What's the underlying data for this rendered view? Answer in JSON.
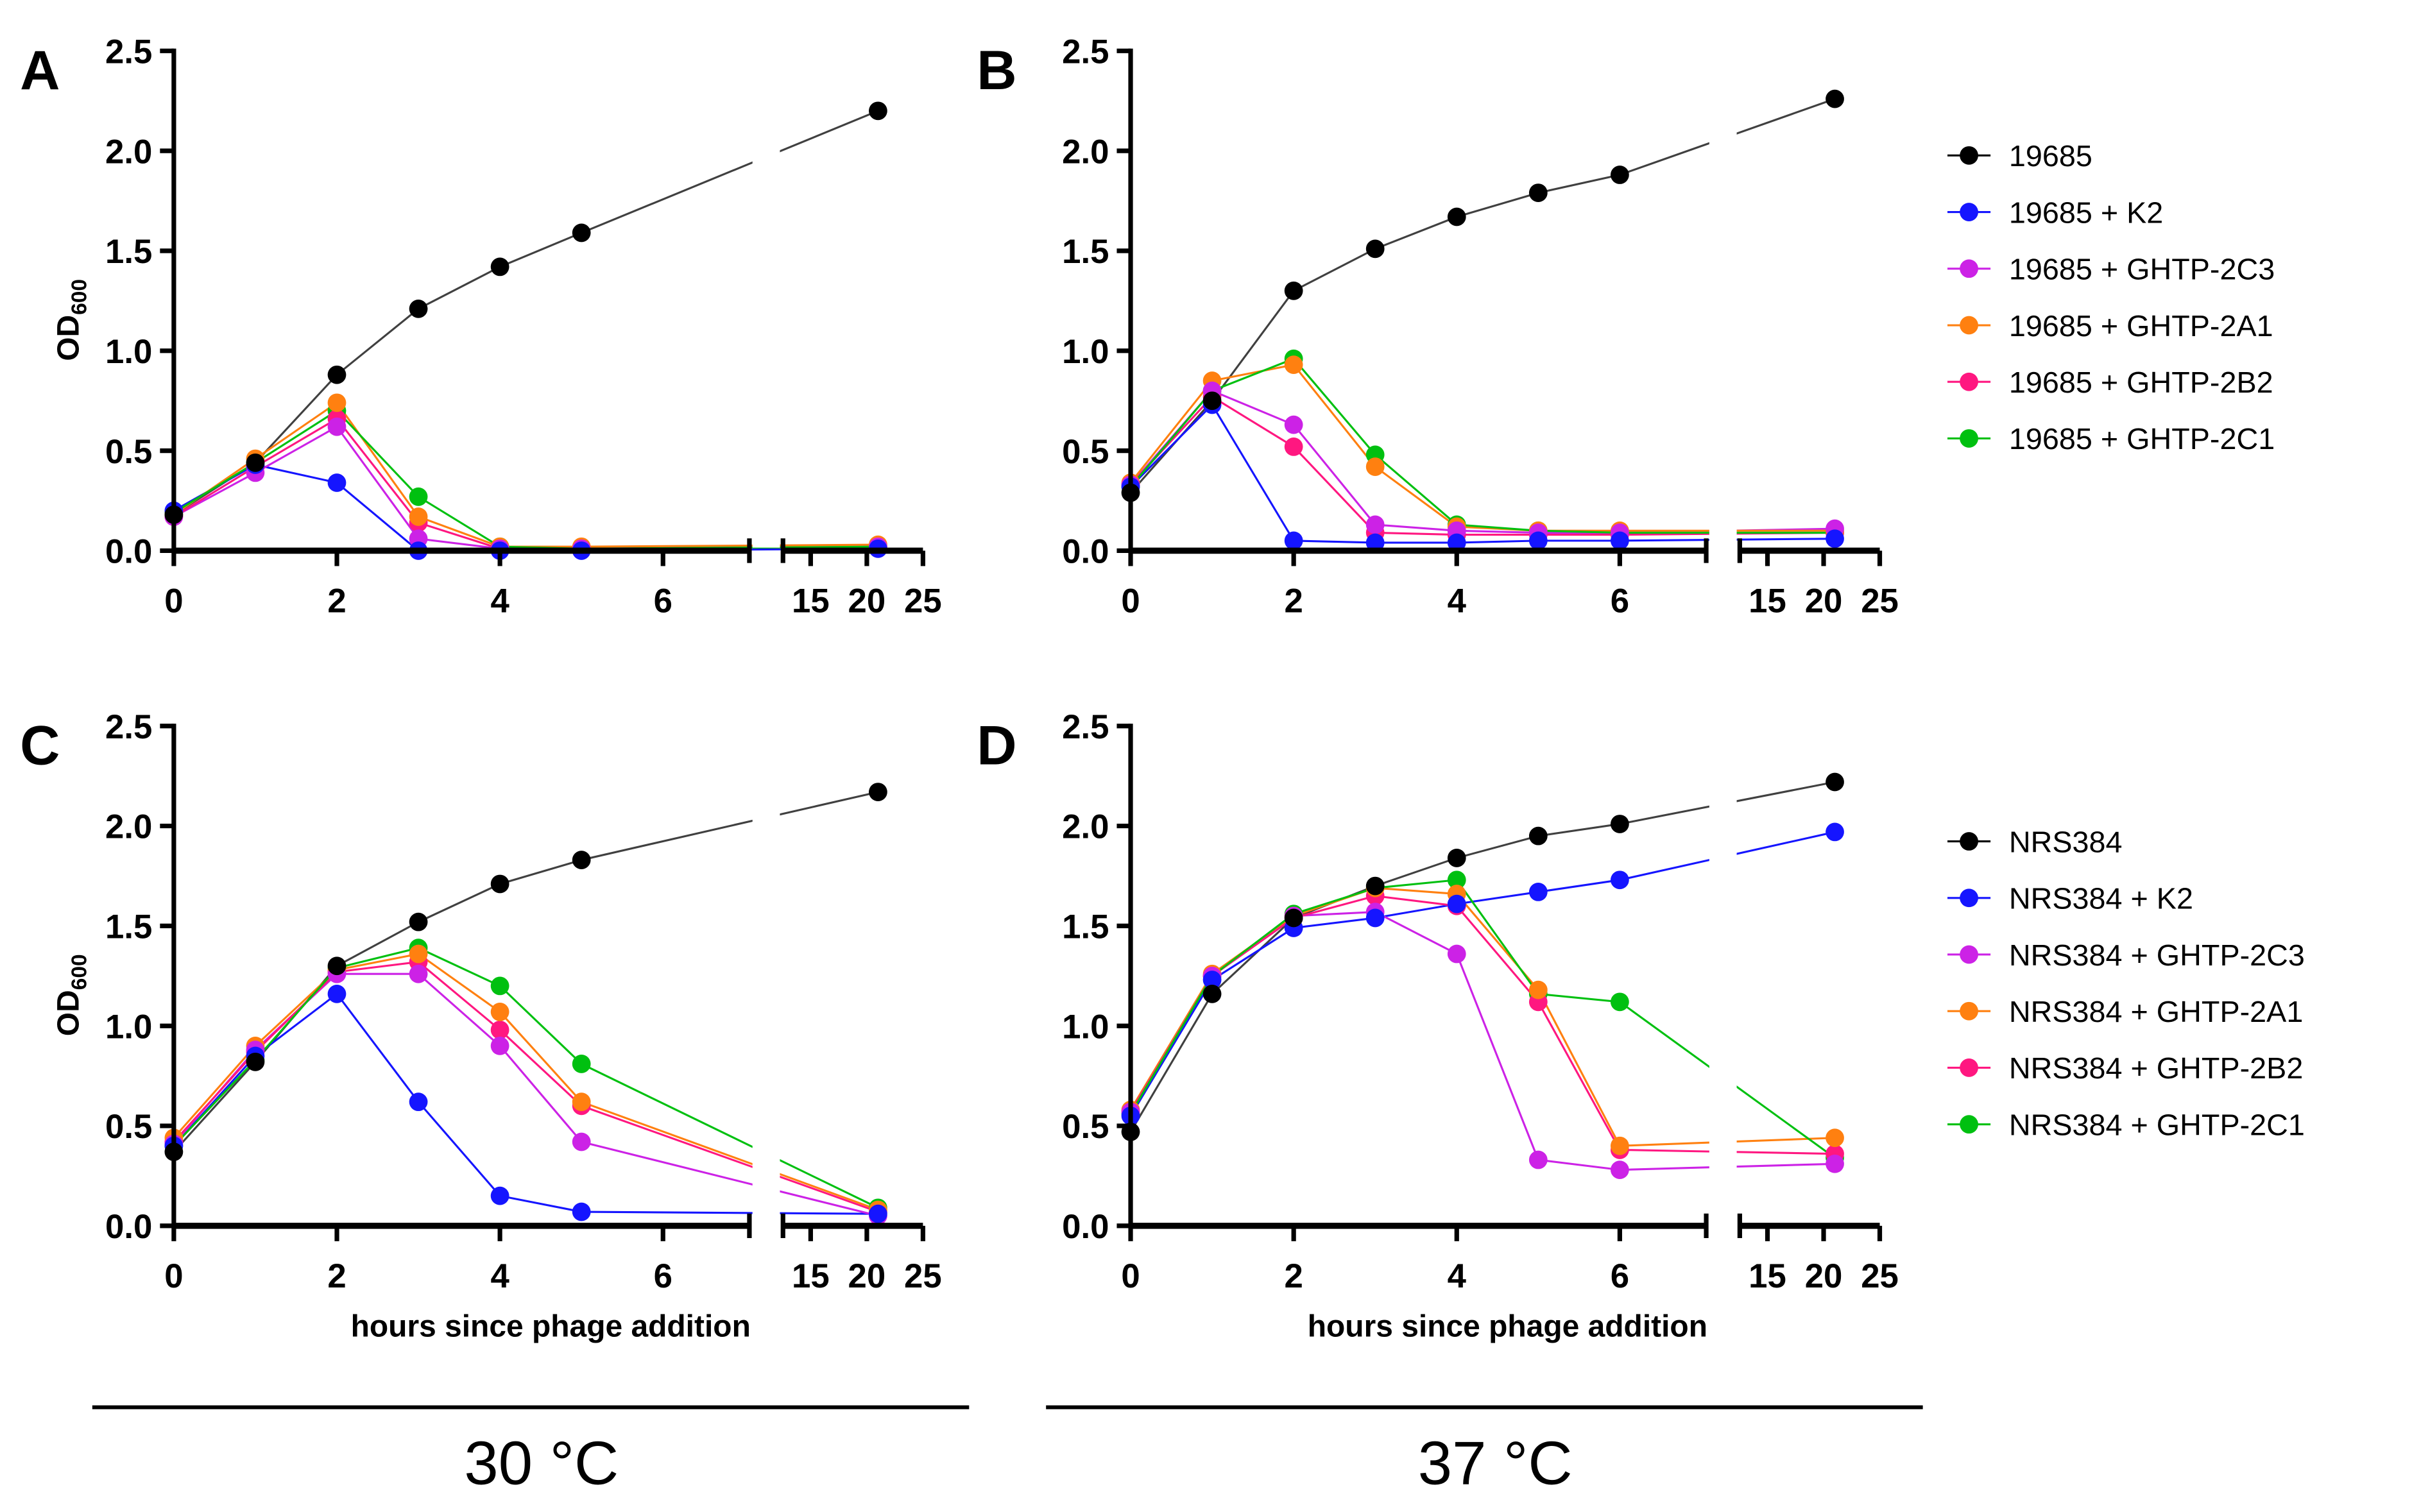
{
  "chart_data": [
    {
      "type": "line",
      "panel": "A",
      "ylabel": "OD",
      "ylabel_sub": "600",
      "xlabel": "",
      "ylim": [
        0,
        2.5
      ],
      "yticks": [
        "0.0",
        "0.5",
        "1.0",
        "1.5",
        "2.0",
        "2.5"
      ],
      "xticks_left": [
        "0",
        "2",
        "4",
        "6"
      ],
      "xticks_right": [
        "15",
        "20",
        "25"
      ],
      "x": [
        0,
        1,
        2,
        3,
        4,
        5,
        21
      ],
      "series": [
        {
          "name": "19685",
          "color": "#000000",
          "values": [
            0.18,
            0.44,
            0.88,
            1.21,
            1.42,
            1.59,
            2.2
          ]
        },
        {
          "name": "19685 + K2",
          "color": "#1515ff",
          "values": [
            0.2,
            0.43,
            0.34,
            0.0,
            0.0,
            0.0,
            0.01
          ]
        },
        {
          "name": "19685 + GHTP-2C3",
          "color": "#cc22e6",
          "values": [
            0.17,
            0.39,
            0.62,
            0.06,
            0.01,
            0.01,
            0.02
          ]
        },
        {
          "name": "19685 + GHTP-2A1",
          "color": "#ff8010",
          "values": [
            0.18,
            0.46,
            0.74,
            0.17,
            0.02,
            0.02,
            0.03
          ]
        },
        {
          "name": "19685 + GHTP-2B2",
          "color": "#ff1780",
          "values": [
            0.17,
            0.42,
            0.66,
            0.14,
            0.01,
            0.01,
            0.02
          ]
        },
        {
          "name": "19685 + GHTP-2C1",
          "color": "#00c010",
          "values": [
            0.19,
            0.44,
            0.7,
            0.27,
            0.02,
            0.01,
            0.02
          ]
        }
      ]
    },
    {
      "type": "line",
      "panel": "B",
      "ylabel": "",
      "ylabel_sub": "",
      "xlabel": "",
      "ylim": [
        0,
        2.5
      ],
      "yticks": [
        "0.0",
        "0.5",
        "1.0",
        "1.5",
        "2.0",
        "2.5"
      ],
      "xticks_left": [
        "0",
        "2",
        "4",
        "6"
      ],
      "xticks_right": [
        "15",
        "20",
        "25"
      ],
      "x": [
        0,
        1,
        2,
        3,
        4,
        5,
        6,
        21
      ],
      "series": [
        {
          "name": "19685",
          "color": "#000000",
          "values": [
            0.29,
            0.75,
            1.3,
            1.51,
            1.67,
            1.79,
            1.88,
            2.26
          ]
        },
        {
          "name": "19685 + K2",
          "color": "#1515ff",
          "values": [
            0.32,
            0.73,
            0.05,
            0.04,
            0.04,
            0.05,
            0.05,
            0.06
          ]
        },
        {
          "name": "19685 + GHTP-2C3",
          "color": "#cc22e6",
          "values": [
            0.33,
            0.8,
            0.63,
            0.13,
            0.1,
            0.09,
            0.09,
            0.11
          ]
        },
        {
          "name": "19685 + GHTP-2A1",
          "color": "#ff8010",
          "values": [
            0.34,
            0.85,
            0.93,
            0.42,
            0.12,
            0.1,
            0.1,
            0.1
          ]
        },
        {
          "name": "19685 + GHTP-2B2",
          "color": "#ff1780",
          "values": [
            0.33,
            0.77,
            0.52,
            0.09,
            0.08,
            0.08,
            0.08,
            0.09
          ]
        },
        {
          "name": "19685 + GHTP-2C1",
          "color": "#00c010",
          "values": [
            0.32,
            0.8,
            0.96,
            0.48,
            0.13,
            0.1,
            0.09,
            0.09
          ]
        }
      ],
      "legend": "right"
    },
    {
      "type": "line",
      "panel": "C",
      "ylabel": "OD",
      "ylabel_sub": "600",
      "xlabel": "hours since phage addition",
      "ylim": [
        0,
        2.5
      ],
      "yticks": [
        "0.0",
        "0.5",
        "1.0",
        "1.5",
        "2.0",
        "2.5"
      ],
      "xticks_left": [
        "0",
        "2",
        "4",
        "6"
      ],
      "xticks_right": [
        "15",
        "20",
        "25"
      ],
      "x": [
        0,
        1,
        2,
        3,
        4,
        5,
        21
      ],
      "series": [
        {
          "name": "NRS384",
          "color": "#000000",
          "values": [
            0.37,
            0.82,
            1.3,
            1.52,
            1.71,
            1.83,
            2.17
          ]
        },
        {
          "name": "NRS384 + K2",
          "color": "#1515ff",
          "values": [
            0.4,
            0.85,
            1.16,
            0.62,
            0.15,
            0.07,
            0.06
          ]
        },
        {
          "name": "NRS384 + GHTP-2C3",
          "color": "#cc22e6",
          "values": [
            0.41,
            0.88,
            1.26,
            1.26,
            0.9,
            0.42,
            0.05
          ]
        },
        {
          "name": "NRS384 + GHTP-2A1",
          "color": "#ff8010",
          "values": [
            0.44,
            0.9,
            1.28,
            1.36,
            1.07,
            0.62,
            0.08
          ]
        },
        {
          "name": "NRS384 + GHTP-2B2",
          "color": "#ff1780",
          "values": [
            0.42,
            0.87,
            1.27,
            1.32,
            0.98,
            0.6,
            0.07
          ]
        },
        {
          "name": "NRS384 + GHTP-2C1",
          "color": "#00c010",
          "values": [
            0.4,
            0.83,
            1.29,
            1.39,
            1.2,
            0.81,
            0.09
          ]
        }
      ]
    },
    {
      "type": "line",
      "panel": "D",
      "ylabel": "",
      "ylabel_sub": "",
      "xlabel": "hours since phage addition",
      "ylim": [
        0,
        2.5
      ],
      "yticks": [
        "0.0",
        "0.5",
        "1.0",
        "1.5",
        "2.0",
        "2.5"
      ],
      "xticks_left": [
        "0",
        "2",
        "4",
        "6"
      ],
      "xticks_right": [
        "15",
        "20",
        "25"
      ],
      "x": [
        0,
        1,
        2,
        3,
        4,
        5,
        6,
        21
      ],
      "series": [
        {
          "name": "NRS384",
          "color": "#000000",
          "values": [
            0.47,
            1.16,
            1.54,
            1.7,
            1.84,
            1.95,
            2.01,
            2.22
          ]
        },
        {
          "name": "NRS384 + K2",
          "color": "#1515ff",
          "values": [
            0.55,
            1.23,
            1.49,
            1.54,
            1.61,
            1.67,
            1.73,
            1.97
          ]
        },
        {
          "name": "NRS384 + GHTP-2C3",
          "color": "#cc22e6",
          "values": [
            0.57,
            1.25,
            1.55,
            1.57,
            1.36,
            0.33,
            0.28,
            0.31
          ]
        },
        {
          "name": "NRS384 + GHTP-2A1",
          "color": "#ff8010",
          "values": [
            0.58,
            1.26,
            1.55,
            1.69,
            1.66,
            1.18,
            0.4,
            0.44
          ]
        },
        {
          "name": "NRS384 + GHTP-2B2",
          "color": "#ff1780",
          "values": [
            0.57,
            1.25,
            1.54,
            1.65,
            1.6,
            1.12,
            0.38,
            0.36
          ]
        },
        {
          "name": "NRS384 + GHTP-2C1",
          "color": "#00c010",
          "values": [
            0.56,
            1.25,
            1.56,
            1.69,
            1.73,
            1.16,
            1.12,
            0.34
          ]
        }
      ],
      "legend": "right"
    }
  ],
  "temperatures": {
    "left": "30 °C",
    "right": "37 °C"
  }
}
